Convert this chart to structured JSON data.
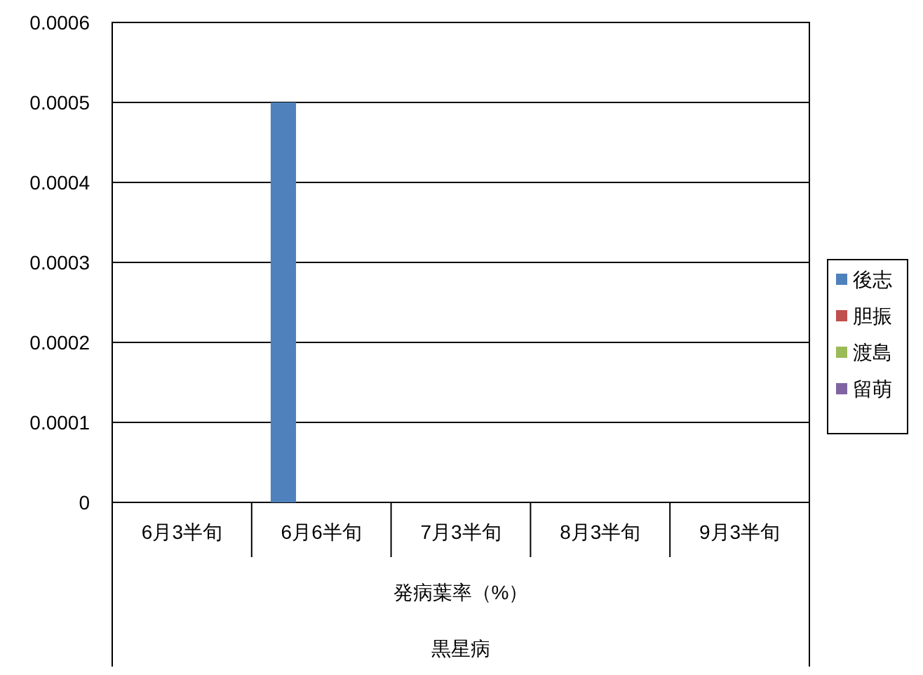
{
  "chart_data": {
    "type": "bar",
    "categories": [
      "6月3半旬",
      "6月6半旬",
      "7月3半旬",
      "8月3半旬",
      "9月3半旬"
    ],
    "xlabel": "発病葉率（%）",
    "annotations": [
      "黒星病"
    ],
    "series": [
      {
        "name": "後志",
        "color": "#4f81bd",
        "values": [
          0,
          0.0005,
          0,
          0,
          0
        ]
      },
      {
        "name": "胆振",
        "color": "#c0504d",
        "values": [
          0,
          0,
          0,
          0,
          0
        ]
      },
      {
        "name": "渡島",
        "color": "#9bbb59",
        "values": [
          0,
          0,
          0,
          0,
          0
        ]
      },
      {
        "name": "留萌",
        "color": "#8064a2",
        "values": [
          0,
          0,
          0,
          0,
          0
        ]
      }
    ],
    "ylim": [
      0,
      0.0006
    ],
    "yticks": [
      0,
      0.0001,
      0.0002,
      0.0003,
      0.0004,
      0.0005,
      0.0006
    ],
    "grid": "y",
    "legend": "right"
  }
}
